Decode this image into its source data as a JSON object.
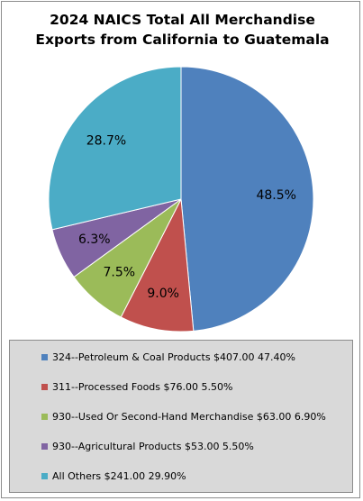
{
  "chart_data": {
    "type": "pie",
    "title_lines": [
      "2024 NAICS Total All Merchandise",
      "Exports from California to Guatemala"
    ],
    "slices": [
      {
        "label": "324--Petroleum & Coal Products $407.00 47.40%",
        "value": 48.5,
        "data_label": "48.5%",
        "color": "#4f81bd"
      },
      {
        "label": "311--Processed Foods $76.00 5.50%",
        "value": 9.0,
        "data_label": "9.0%",
        "color": "#c0504d"
      },
      {
        "label": "930--Used Or Second-Hand Merchandise $63.00 6.90%",
        "value": 7.5,
        "data_label": "7.5%",
        "color": "#9bbb59"
      },
      {
        "label": "930--Agricultural Products $53.00 5.50%",
        "value": 6.3,
        "data_label": "6.3%",
        "color": "#8064a2"
      },
      {
        "label": "All Others $241.00 29.90%",
        "value": 28.7,
        "data_label": "28.7%",
        "color": "#4bacc6"
      }
    ],
    "legend_position": "bottom"
  }
}
